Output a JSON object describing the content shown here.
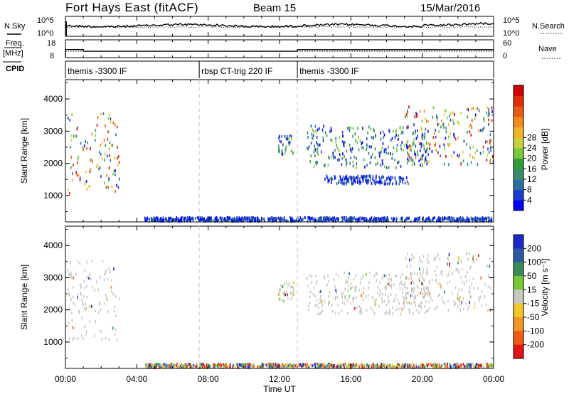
{
  "header": {
    "station": "Fort Hays East (fitACF)",
    "beam": "Beam 15",
    "date": "15/Mar/2016"
  },
  "top_panels": {
    "nsky_label": "N.Sky",
    "nsky_ticks": [
      "10^5",
      "10^0"
    ],
    "nsearch_label": "N.Search",
    "nsearch_ticks": [
      "10^5",
      "10^0"
    ],
    "freq_label": "Freq.",
    "freq_unit": "[MHz]",
    "freq_ticks": [
      "18",
      "8"
    ],
    "nave_label": "Nave",
    "nave_ticks": [
      "60",
      "0"
    ],
    "cpid_label": "CPID",
    "cpid_segments": [
      {
        "label": "themis -3300 IF",
        "start_h": 0.0,
        "end_h": 7.5
      },
      {
        "label": "rbsp CT-trig 220 IF",
        "start_h": 7.5,
        "end_h": 13.0
      },
      {
        "label": "themis -3300 IF",
        "start_h": 13.0,
        "end_h": 24.0
      }
    ],
    "freq_steps": [
      {
        "start_h": 0.0,
        "end_h": 1.0,
        "mhz": 12.7
      },
      {
        "start_h": 1.0,
        "end_h": 13.0,
        "mhz": 11.6
      },
      {
        "start_h": 13.0,
        "end_h": 24.0,
        "mhz": 12.6
      }
    ]
  },
  "x_axis": {
    "label": "Time UT",
    "ticks": [
      "00:00",
      "04:00",
      "08:00",
      "12:00",
      "16:00",
      "20:00",
      "00:00"
    ]
  },
  "chart_data": [
    {
      "type": "heatmap",
      "panel": "power",
      "ylabel": "Slant Range [km]",
      "y_ticks": [
        1000,
        2000,
        3000,
        4000
      ],
      "ylim": [
        180,
        4600
      ],
      "xlim_hours": [
        0,
        24
      ],
      "colorbar": {
        "label": "Power [dB]",
        "ticks": [
          "4",
          "8",
          "12",
          "16",
          "20",
          "24",
          "28"
        ],
        "colors": [
          "#0000ff",
          "#1a3cc8",
          "#2d6ea0",
          "#3a8a6e",
          "#2f9d3a",
          "#78c83c",
          "#c8d23c",
          "#f0b428",
          "#f08a1e",
          "#e85a14",
          "#e02d0a",
          "#d00000"
        ]
      },
      "echo_regions": [
        {
          "t": [
            0.1,
            3.0
          ],
          "r": [
            1100,
            3600
          ],
          "level": "high"
        },
        {
          "t": [
            4.4,
            23.9
          ],
          "r": [
            240,
            360
          ],
          "level": "low"
        },
        {
          "t": [
            11.9,
            12.8
          ],
          "r": [
            2300,
            2900
          ],
          "level": "mid"
        },
        {
          "t": [
            13.5,
            20.4
          ],
          "r": [
            1900,
            3200
          ],
          "level": "mid"
        },
        {
          "t": [
            14.5,
            19.2
          ],
          "r": [
            1400,
            1650
          ],
          "level": "low"
        },
        {
          "t": [
            19.0,
            24.0
          ],
          "r": [
            2000,
            3800
          ],
          "level": "high"
        }
      ]
    },
    {
      "type": "heatmap",
      "panel": "velocity",
      "ylabel": "Slant Range [km]",
      "y_ticks": [
        1000,
        2000,
        3000,
        4000
      ],
      "ylim": [
        180,
        4600
      ],
      "xlim_hours": [
        0,
        24
      ],
      "colorbar": {
        "label": "Velocity [m s⁻¹]",
        "ticks": [
          "200",
          "100",
          "50",
          "15",
          "-15",
          "-50",
          "-100",
          "-200"
        ],
        "colors": [
          "#1e28c8",
          "#2c5aa0",
          "#3a8a5a",
          "#7ac832",
          "#c8c8c0",
          "#f0c828",
          "#f09628",
          "#f05a14",
          "#e01414"
        ]
      },
      "echo_regions": [
        {
          "t": [
            0.1,
            3.0
          ],
          "r": [
            1100,
            3600
          ],
          "level": "ground"
        },
        {
          "t": [
            4.4,
            23.9
          ],
          "r": [
            240,
            360
          ],
          "level": "mixed"
        },
        {
          "t": [
            11.9,
            12.8
          ],
          "r": [
            2300,
            2900
          ],
          "level": "ground"
        },
        {
          "t": [
            13.5,
            20.4
          ],
          "r": [
            1900,
            3200
          ],
          "level": "ground"
        },
        {
          "t": [
            19.0,
            24.0
          ],
          "r": [
            2000,
            3800
          ],
          "level": "ground"
        }
      ]
    }
  ]
}
